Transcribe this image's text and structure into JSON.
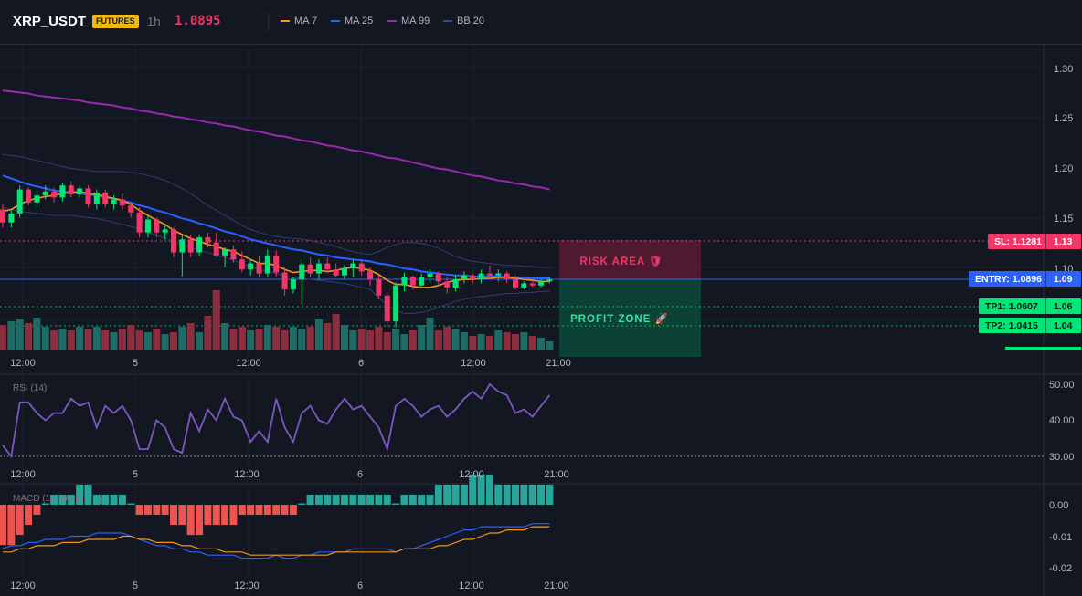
{
  "header": {
    "symbol": "XRP_USDT",
    "badge": "FUTURES",
    "timeframe": "1h",
    "price": "1.0895",
    "legend": [
      {
        "label": "MA 7",
        "color": "#f7931a"
      },
      {
        "label": "MA 25",
        "color": "#2962ff"
      },
      {
        "label": "MA 99",
        "color": "#9c27b0"
      },
      {
        "label": "BB 20",
        "color": "#3a4a8a"
      }
    ]
  },
  "colors": {
    "up": "#26a69a",
    "up_bright": "#00e676",
    "down": "#f23668",
    "vol_up": "#1f6b66",
    "vol_down": "#8b2f40"
  },
  "price_axis": {
    "ticks": [
      "1.30",
      "1.25",
      "1.20",
      "1.15",
      "1.10"
    ]
  },
  "time_axis": {
    "labels": [
      "12:00",
      "5",
      "12:00",
      "6",
      "12:00",
      "21:00"
    ]
  },
  "levels": {
    "sl": {
      "label": "SL: 1.1281",
      "value": "1.13"
    },
    "entry": {
      "label": "ENTRY: 1.0896",
      "value": "1.09"
    },
    "tp1": {
      "label": "TP1: 1.0607",
      "value": "1.06"
    },
    "tp2": {
      "label": "TP2: 1.0415",
      "value": "1.04"
    }
  },
  "zones": {
    "risk": "RISK AREA 🛡",
    "profit": "PROFIT ZONE 🚀"
  },
  "rsi": {
    "label": "RSI (14)",
    "ticks": [
      "50.00",
      "40.00",
      "30.00"
    ]
  },
  "macd": {
    "label": "MACD (12, 26, 9)",
    "ticks": [
      "0.00",
      "-0.01",
      "-0.02"
    ]
  },
  "chart_data": {
    "type": "candlestick",
    "price_range": [
      1.08,
      1.33
    ],
    "candles": [
      [
        1.158,
        1.163,
        1.14,
        1.145
      ],
      [
        1.145,
        1.158,
        1.14,
        1.154
      ],
      [
        1.154,
        1.182,
        1.15,
        1.178
      ],
      [
        1.178,
        1.18,
        1.162,
        1.165
      ],
      [
        1.165,
        1.177,
        1.16,
        1.172
      ],
      [
        1.172,
        1.182,
        1.168,
        1.176
      ],
      [
        1.176,
        1.18,
        1.165,
        1.17
      ],
      [
        1.17,
        1.185,
        1.166,
        1.182
      ],
      [
        1.182,
        1.186,
        1.17,
        1.173
      ],
      [
        1.173,
        1.182,
        1.17,
        1.179
      ],
      [
        1.179,
        1.182,
        1.16,
        1.163
      ],
      [
        1.163,
        1.178,
        1.158,
        1.175
      ],
      [
        1.175,
        1.178,
        1.16,
        1.163
      ],
      [
        1.163,
        1.172,
        1.158,
        1.168
      ],
      [
        1.168,
        1.174,
        1.158,
        1.162
      ],
      [
        1.162,
        1.165,
        1.15,
        1.155
      ],
      [
        1.155,
        1.16,
        1.13,
        1.135
      ],
      [
        1.135,
        1.152,
        1.13,
        1.148
      ],
      [
        1.148,
        1.15,
        1.13,
        1.135
      ],
      [
        1.135,
        1.142,
        1.128,
        1.138
      ],
      [
        1.138,
        1.14,
        1.11,
        1.115
      ],
      [
        1.115,
        1.132,
        1.091,
        1.128
      ],
      [
        1.128,
        1.133,
        1.11,
        1.115
      ],
      [
        1.115,
        1.133,
        1.112,
        1.13
      ],
      [
        1.13,
        1.135,
        1.12,
        1.125
      ],
      [
        1.125,
        1.135,
        1.11,
        1.112
      ],
      [
        1.112,
        1.12,
        1.1,
        1.118
      ],
      [
        1.118,
        1.122,
        1.105,
        1.108
      ],
      [
        1.108,
        1.116,
        1.095,
        1.098
      ],
      [
        1.098,
        1.108,
        1.092,
        1.104
      ],
      [
        1.104,
        1.112,
        1.09,
        1.094
      ],
      [
        1.094,
        1.118,
        1.09,
        1.112
      ],
      [
        1.112,
        1.117,
        1.09,
        1.095
      ],
      [
        1.095,
        1.1,
        1.072,
        1.078
      ],
      [
        1.078,
        1.09,
        1.074,
        1.088
      ],
      [
        1.088,
        1.108,
        1.063,
        1.103
      ],
      [
        1.103,
        1.11,
        1.09,
        1.094
      ],
      [
        1.094,
        1.108,
        1.088,
        1.104
      ],
      [
        1.104,
        1.11,
        1.094,
        1.098
      ],
      [
        1.098,
        1.104,
        1.09,
        1.092
      ],
      [
        1.092,
        1.103,
        1.088,
        1.099
      ],
      [
        1.099,
        1.108,
        1.09,
        1.104
      ],
      [
        1.104,
        1.108,
        1.092,
        1.096
      ],
      [
        1.096,
        1.1,
        1.082,
        1.088
      ],
      [
        1.088,
        1.092,
        1.068,
        1.072
      ],
      [
        1.072,
        1.075,
        1.041,
        1.046
      ],
      [
        1.046,
        1.085,
        1.04,
        1.082
      ],
      [
        1.082,
        1.095,
        1.076,
        1.09
      ],
      [
        1.09,
        1.092,
        1.078,
        1.082
      ],
      [
        1.082,
        1.094,
        1.08,
        1.09
      ],
      [
        1.09,
        1.098,
        1.084,
        1.094
      ],
      [
        1.094,
        1.096,
        1.082,
        1.086
      ],
      [
        1.086,
        1.09,
        1.074,
        1.08
      ],
      [
        1.08,
        1.092,
        1.076,
        1.088
      ],
      [
        1.088,
        1.096,
        1.084,
        1.092
      ],
      [
        1.092,
        1.094,
        1.084,
        1.088
      ],
      [
        1.088,
        1.098,
        1.084,
        1.094
      ],
      [
        1.094,
        1.102,
        1.088,
        1.092
      ],
      [
        1.092,
        1.098,
        1.086,
        1.094
      ],
      [
        1.094,
        1.096,
        1.084,
        1.088
      ],
      [
        1.088,
        1.092,
        1.078,
        1.08
      ],
      [
        1.08,
        1.086,
        1.078,
        1.084
      ],
      [
        1.084,
        1.087,
        1.08,
        1.082
      ],
      [
        1.082,
        1.088,
        1.08,
        1.086
      ],
      [
        1.086,
        1.09,
        1.084,
        1.088
      ]
    ],
    "volume": [
      28,
      32,
      34,
      30,
      36,
      26,
      22,
      24,
      22,
      26,
      24,
      26,
      22,
      20,
      24,
      28,
      22,
      20,
      24,
      18,
      20,
      26,
      30,
      20,
      38,
      66,
      30,
      24,
      26,
      22,
      24,
      28,
      26,
      22,
      26,
      24,
      26,
      34,
      30,
      40,
      28,
      22,
      24,
      22,
      26,
      20,
      24,
      18,
      22,
      28,
      36,
      22,
      26,
      24,
      20,
      16,
      18,
      16,
      22,
      20,
      18,
      20,
      16,
      14,
      10
    ],
    "ma7": [
      1.156,
      1.158,
      1.163,
      1.167,
      1.169,
      1.171,
      1.172,
      1.174,
      1.175,
      1.176,
      1.174,
      1.173,
      1.171,
      1.169,
      1.167,
      1.163,
      1.157,
      1.152,
      1.147,
      1.143,
      1.137,
      1.133,
      1.129,
      1.126,
      1.123,
      1.121,
      1.118,
      1.116,
      1.112,
      1.108,
      1.104,
      1.104,
      1.102,
      1.098,
      1.095,
      1.096,
      1.097,
      1.097,
      1.096,
      1.097,
      1.099,
      1.1,
      1.099,
      1.097,
      1.093,
      1.087,
      1.083,
      1.083,
      1.081,
      1.08,
      1.08,
      1.082,
      1.085,
      1.087,
      1.088,
      1.088,
      1.089,
      1.089,
      1.09,
      1.09,
      1.089,
      1.088,
      1.087,
      1.086,
      1.086
    ],
    "ma25": [
      1.192,
      1.189,
      1.186,
      1.183,
      1.181,
      1.179,
      1.177,
      1.176,
      1.175,
      1.174,
      1.173,
      1.172,
      1.17,
      1.169,
      1.167,
      1.165,
      1.162,
      1.16,
      1.157,
      1.155,
      1.152,
      1.149,
      1.147,
      1.144,
      1.142,
      1.139,
      1.136,
      1.134,
      1.131,
      1.128,
      1.126,
      1.124,
      1.122,
      1.12,
      1.118,
      1.117,
      1.115,
      1.113,
      1.112,
      1.11,
      1.109,
      1.108,
      1.107,
      1.106,
      1.104,
      1.103,
      1.101,
      1.099,
      1.098,
      1.096,
      1.095,
      1.094,
      1.093,
      1.092,
      1.092,
      1.091,
      1.091,
      1.091,
      1.091,
      1.09,
      1.09,
      1.09,
      1.089,
      1.089,
      1.089
    ],
    "ma99": [
      1.277,
      1.276,
      1.275,
      1.274,
      1.272,
      1.271,
      1.27,
      1.269,
      1.268,
      1.267,
      1.265,
      1.264,
      1.263,
      1.262,
      1.26,
      1.259,
      1.257,
      1.256,
      1.254,
      1.253,
      1.251,
      1.25,
      1.248,
      1.247,
      1.245,
      1.244,
      1.242,
      1.241,
      1.239,
      1.237,
      1.236,
      1.234,
      1.232,
      1.231,
      1.229,
      1.227,
      1.226,
      1.224,
      1.222,
      1.221,
      1.219,
      1.217,
      1.216,
      1.214,
      1.212,
      1.21,
      1.209,
      1.207,
      1.205,
      1.203,
      1.201,
      1.199,
      1.198,
      1.196,
      1.194,
      1.192,
      1.191,
      1.189,
      1.187,
      1.186,
      1.184,
      1.183,
      1.181,
      1.18,
      1.178
    ],
    "bb_upper": [
      1.213,
      1.212,
      1.211,
      1.209,
      1.207,
      1.205,
      1.203,
      1.201,
      1.199,
      1.198,
      1.197,
      1.196,
      1.196,
      1.196,
      1.196,
      1.195,
      1.194,
      1.192,
      1.19,
      1.187,
      1.183,
      1.179,
      1.174,
      1.168,
      1.162,
      1.157,
      1.152,
      1.147,
      1.142,
      1.138,
      1.135,
      1.133,
      1.131,
      1.13,
      1.129,
      1.128,
      1.127,
      1.125,
      1.123,
      1.121,
      1.118,
      1.116,
      1.114,
      1.113,
      1.116,
      1.12,
      1.123,
      1.125,
      1.125,
      1.124,
      1.122,
      1.119,
      1.115,
      1.111,
      1.108,
      1.106,
      1.105,
      1.104,
      1.103,
      1.102,
      1.102,
      1.101,
      1.101,
      1.1,
      1.1
    ],
    "bb_lower": [
      1.16,
      1.158,
      1.156,
      1.155,
      1.154,
      1.153,
      1.152,
      1.152,
      1.152,
      1.151,
      1.15,
      1.149,
      1.147,
      1.145,
      1.143,
      1.141,
      1.138,
      1.135,
      1.132,
      1.129,
      1.126,
      1.123,
      1.12,
      1.117,
      1.115,
      1.112,
      1.11,
      1.107,
      1.104,
      1.101,
      1.098,
      1.096,
      1.094,
      1.092,
      1.09,
      1.089,
      1.088,
      1.087,
      1.086,
      1.085,
      1.084,
      1.082,
      1.08,
      1.078,
      1.07,
      1.062,
      1.057,
      1.054,
      1.054,
      1.055,
      1.057,
      1.06,
      1.063,
      1.066,
      1.068,
      1.07,
      1.071,
      1.072,
      1.073,
      1.074,
      1.074,
      1.075,
      1.075,
      1.076,
      1.076
    ],
    "rsi_range": [
      27,
      53
    ],
    "rsi": [
      33,
      30,
      45,
      45,
      42,
      40,
      42,
      42,
      46,
      44,
      45,
      38,
      44,
      42,
      44,
      40,
      32,
      32,
      40,
      38,
      32,
      31,
      42,
      37,
      43,
      40,
      46,
      41,
      40,
      34,
      37,
      34,
      46,
      38,
      34,
      42,
      44,
      40,
      39,
      43,
      46,
      43,
      44,
      41,
      38,
      32,
      44,
      46,
      44,
      41,
      43,
      44,
      41,
      43,
      46,
      48,
      46,
      50,
      48,
      47,
      42,
      43,
      41,
      44,
      47
    ],
    "macd_range": [
      -0.022,
      0.002
    ],
    "macd_hist": [
      -0.004,
      -0.004,
      -0.003,
      -0.002,
      -0.001,
      0.0,
      0.001,
      0.001,
      0.001,
      0.002,
      0.002,
      0.001,
      0.001,
      0.001,
      0.001,
      0.0,
      -0.001,
      -0.001,
      -0.001,
      -0.001,
      -0.002,
      -0.002,
      -0.003,
      -0.003,
      -0.002,
      -0.002,
      -0.002,
      -0.002,
      -0.001,
      -0.001,
      -0.001,
      -0.001,
      -0.001,
      -0.001,
      -0.001,
      0.0,
      0.001,
      0.001,
      0.001,
      0.001,
      0.001,
      0.001,
      0.001,
      0.001,
      0.001,
      0.001,
      0.0,
      0.001,
      0.001,
      0.001,
      0.001,
      0.002,
      0.002,
      0.002,
      0.002,
      0.003,
      0.003,
      0.003,
      0.002,
      0.002,
      0.002,
      0.002,
      0.002,
      0.002,
      0.002
    ],
    "macd_line": [
      -0.014,
      -0.013,
      -0.013,
      -0.012,
      -0.012,
      -0.011,
      -0.011,
      -0.011,
      -0.01,
      -0.01,
      -0.01,
      -0.009,
      -0.009,
      -0.009,
      -0.009,
      -0.01,
      -0.011,
      -0.012,
      -0.013,
      -0.013,
      -0.014,
      -0.014,
      -0.015,
      -0.015,
      -0.016,
      -0.016,
      -0.016,
      -0.016,
      -0.017,
      -0.017,
      -0.017,
      -0.017,
      -0.016,
      -0.017,
      -0.017,
      -0.016,
      -0.016,
      -0.015,
      -0.015,
      -0.015,
      -0.015,
      -0.014,
      -0.014,
      -0.014,
      -0.014,
      -0.014,
      -0.015,
      -0.014,
      -0.014,
      -0.013,
      -0.012,
      -0.011,
      -0.01,
      -0.009,
      -0.008,
      -0.008,
      -0.007,
      -0.007,
      -0.007,
      -0.007,
      -0.007,
      -0.007,
      -0.006,
      -0.006,
      -0.006
    ],
    "macd_signal": [
      -0.015,
      -0.015,
      -0.014,
      -0.014,
      -0.013,
      -0.013,
      -0.013,
      -0.012,
      -0.012,
      -0.012,
      -0.011,
      -0.011,
      -0.011,
      -0.011,
      -0.01,
      -0.01,
      -0.011,
      -0.011,
      -0.012,
      -0.012,
      -0.012,
      -0.013,
      -0.013,
      -0.014,
      -0.014,
      -0.014,
      -0.015,
      -0.015,
      -0.015,
      -0.016,
      -0.016,
      -0.016,
      -0.016,
      -0.016,
      -0.016,
      -0.016,
      -0.016,
      -0.016,
      -0.016,
      -0.015,
      -0.015,
      -0.015,
      -0.015,
      -0.015,
      -0.015,
      -0.015,
      -0.015,
      -0.014,
      -0.014,
      -0.014,
      -0.014,
      -0.013,
      -0.013,
      -0.012,
      -0.011,
      -0.011,
      -0.01,
      -0.009,
      -0.009,
      -0.008,
      -0.008,
      -0.008,
      -0.007,
      -0.007,
      -0.007
    ]
  }
}
